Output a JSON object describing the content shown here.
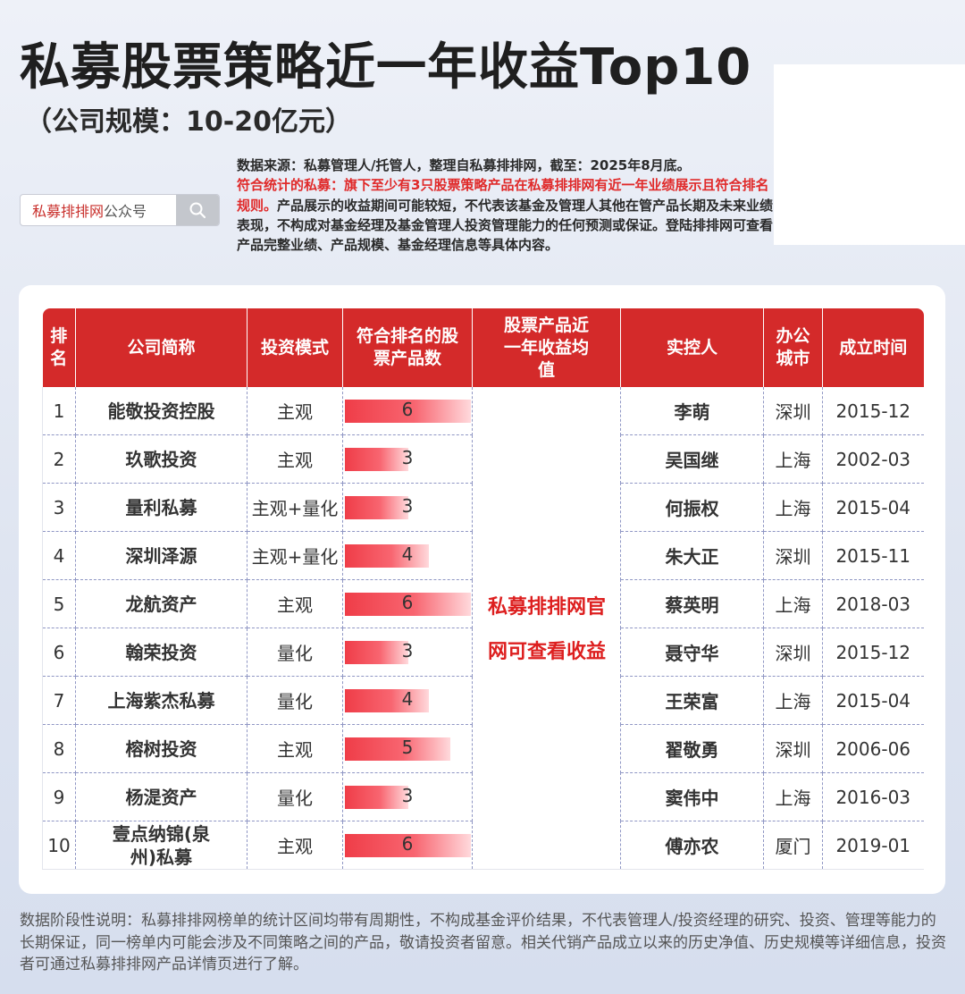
{
  "header": {
    "title": "私募股票策略近一年收益Top10",
    "subtitle": "（公司规模：10-20亿元）"
  },
  "search": {
    "red_text": "私募排排网",
    "gray_text": "公众号",
    "icon": "search-icon"
  },
  "notes": {
    "source": "数据来源：私募管理人/托管人，整理自私募排排网，截至：2025年8月底。",
    "criteria": "符合统计的私募：旗下至少有3只股票策略产品在私募排排网有近一年业绩展示且符合排名规则。",
    "disclaimer": "产品展示的收益期间可能较短，不代表该基金及管理人其他在管产品长期及未来业绩表现，不构成对基金经理及基金管理人投资管理能力的任何预测或保证。登陆排排网可查看产品完整业绩、产品规模、基金经理信息等具体内容。"
  },
  "table": {
    "headers": {
      "rank": "排名",
      "company": "公司简称",
      "mode": "投资模式",
      "count": "符合排名的股票产品数",
      "return": "股票产品近一年收益均值",
      "controller": "实控人",
      "city": "办公城市",
      "date": "成立时间"
    },
    "merged_note": "私募排排网官网可查看收益",
    "rows": [
      {
        "rank": "1",
        "company": "能敬投资控股",
        "mode": "主观",
        "count": "6",
        "count_value": 6,
        "controller": "李萌",
        "city": "深圳",
        "date": "2015-12"
      },
      {
        "rank": "2",
        "company": "玖歌投资",
        "mode": "主观",
        "count": "3",
        "count_value": 3,
        "controller": "吴国继",
        "city": "上海",
        "date": "2002-03"
      },
      {
        "rank": "3",
        "company": "量利私募",
        "mode": "主观+量化",
        "count": "3",
        "count_value": 3,
        "controller": "何振权",
        "city": "上海",
        "date": "2015-04"
      },
      {
        "rank": "4",
        "company": "深圳泽源",
        "mode": "主观+量化",
        "count": "4",
        "count_value": 4,
        "controller": "朱大正",
        "city": "深圳",
        "date": "2015-11"
      },
      {
        "rank": "5",
        "company": "龙航资产",
        "mode": "主观",
        "count": "6",
        "count_value": 6,
        "controller": "蔡英明",
        "city": "上海",
        "date": "2018-03"
      },
      {
        "rank": "6",
        "company": "翰荣投资",
        "mode": "量化",
        "count": "3",
        "count_value": 3,
        "controller": "聂守华",
        "city": "深圳",
        "date": "2015-12"
      },
      {
        "rank": "7",
        "company": "上海紫杰私募",
        "mode": "量化",
        "count": "4",
        "count_value": 4,
        "controller": "王荣富",
        "city": "上海",
        "date": "2015-04"
      },
      {
        "rank": "8",
        "company": "榕树投资",
        "mode": "主观",
        "count": "5",
        "count_value": 5,
        "controller": "翟敬勇",
        "city": "深圳",
        "date": "2006-06"
      },
      {
        "rank": "9",
        "company": "杨湜资产",
        "mode": "量化",
        "count": "3",
        "count_value": 3,
        "controller": "窦伟中",
        "city": "上海",
        "date": "2016-03"
      },
      {
        "rank": "10",
        "company": "壹点纳锦(泉州)私募",
        "mode": "主观",
        "count": "6",
        "count_value": 6,
        "controller": "傅亦农",
        "city": "厦门",
        "date": "2019-01"
      }
    ],
    "bar_max": 6
  },
  "footer": {
    "text": "数据阶段性说明：私募排排网榜单的统计区间均带有周期性，不构成基金评价结果，不代表管理人/投资经理的研究、投资、管理等能力的长期保证，同一榜单内可能会涉及不同策略之间的产品，敬请投资者留意。相关代销产品成立以来的历史净值、历史规模等详细信息，投资者可通过私募排排网产品详情页进行了解。"
  },
  "colors": {
    "header_red": "#d42a2a",
    "accent_red": "#cc2222",
    "bar_gradient_start": "#ef3d48",
    "background": "#e4e9f3"
  }
}
